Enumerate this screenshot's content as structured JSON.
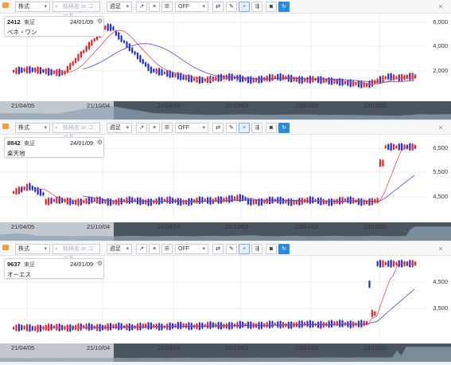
{
  "toolbar": {
    "market": "株式",
    "search_placeholder": "銘柄名 or コード",
    "period": "週足",
    "indicator": "OFF"
  },
  "panels": [
    {
      "code": "2412",
      "market": "東証",
      "date": "24/01/09",
      "name": "ベネ・ワン",
      "y_ticks": [
        "6,000",
        "4,000",
        "2,000"
      ],
      "x_ticks": [
        "21/04/05",
        "21/10/04",
        "22/04/04",
        "22/10/03",
        "23/04/03",
        "23/10/02"
      ],
      "nav_buttons": [
        "−",
        "+",
        "‹",
        "›"
      ]
    },
    {
      "code": "8842",
      "market": "東証",
      "date": "24/01/09",
      "name": "楽天地",
      "y_ticks": [
        "6,500",
        "5,500",
        "4,500"
      ],
      "x_ticks": [
        "21/04/05",
        "21/10/04",
        "22/04/04",
        "22/10/03",
        "23/04/03",
        "23/10/02"
      ]
    },
    {
      "code": "9637",
      "market": "東証",
      "date": "24/01/09",
      "name": "オーエス",
      "y_ticks": [
        "4,500",
        "3,500"
      ],
      "x_ticks": [
        "21/04/05",
        "21/10/04",
        "22/04/04",
        "22/10/03",
        "23/04/03",
        "23/10/02"
      ]
    }
  ],
  "colors": {
    "up": "#e2262b",
    "down": "#1f2fd0",
    "ma_short": "#2a9a3b",
    "ma_mid": "#e05050",
    "ma_long": "#4a4ad0"
  }
}
